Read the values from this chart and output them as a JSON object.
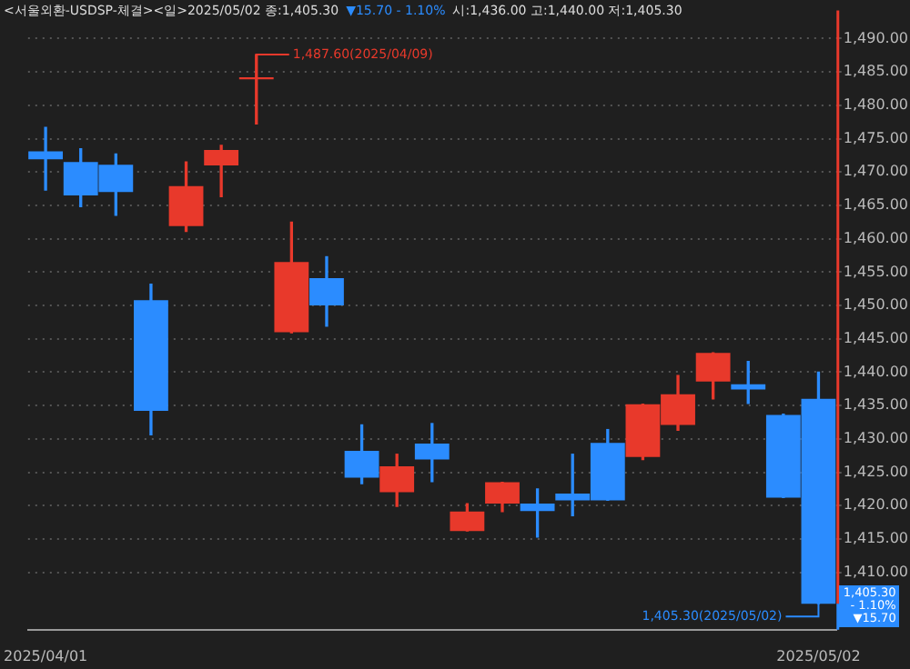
{
  "chart_data": {
    "type": "candlestick",
    "title": "<서울외환-USDSP-체결><일>2025/05/02 종:1,405.30",
    "categories": [
      "2025/04/01",
      null,
      null,
      null,
      null,
      null,
      null,
      null,
      null,
      null,
      null,
      null,
      null,
      null,
      null,
      null,
      null,
      null,
      null,
      null,
      null,
      null,
      "2025/05/02"
    ],
    "ohlc": [
      [
        1473.1,
        1476.7,
        1467.3,
        1471.9
      ],
      [
        1471.5,
        1473.5,
        1464.8,
        1466.5
      ],
      [
        1471.1,
        1472.7,
        1463.5,
        1467.0
      ],
      [
        1450.8,
        1453.2,
        1430.6,
        1434.2
      ],
      [
        1461.9,
        1471.5,
        1461.1,
        1467.9
      ],
      [
        1471.0,
        1474.0,
        1466.3,
        1473.3
      ],
      [
        1483.9,
        1487.6,
        1477.2,
        1484.2
      ],
      [
        1446.0,
        1462.5,
        1445.9,
        1456.5
      ],
      [
        1454.1,
        1457.3,
        1446.9,
        1450.0
      ],
      [
        1428.2,
        1432.1,
        1423.3,
        1424.2
      ],
      [
        1422.0,
        1427.7,
        1419.9,
        1425.9
      ],
      [
        1429.3,
        1432.3,
        1423.6,
        1426.9
      ],
      [
        1416.2,
        1420.3,
        1416.2,
        1419.1
      ],
      [
        1420.3,
        1423.5,
        1419.1,
        1423.5
      ],
      [
        1420.3,
        1422.5,
        1415.3,
        1419.2
      ],
      [
        1421.8,
        1427.7,
        1418.5,
        1420.8
      ],
      [
        1429.4,
        1431.4,
        1420.8,
        1420.8
      ],
      [
        1427.3,
        1435.2,
        1426.9,
        1435.2
      ],
      [
        1432.1,
        1439.5,
        1431.3,
        1436.7
      ],
      [
        1438.6,
        1442.9,
        1436.0,
        1442.9
      ],
      [
        1438.2,
        1441.6,
        1435.3,
        1437.4
      ],
      [
        1433.6,
        1433.7,
        1421.2,
        1421.2
      ],
      [
        1436.0,
        1440.0,
        1405.3,
        1405.3
      ]
    ],
    "colors": [
      "#2b8cff",
      "#2b8cff",
      "#2b8cff",
      "#2b8cff",
      "#e8392b",
      "#e8392b",
      "#e8392b",
      "#e8392b",
      "#2b8cff",
      "#2b8cff",
      "#e8392b",
      "#2b8cff",
      "#e8392b",
      "#e8392b",
      "#2b8cff",
      "#2b8cff",
      "#2b8cff",
      "#e8392b",
      "#e8392b",
      "#e8392b",
      "#2b8cff",
      "#2b8cff",
      "#2b8cff"
    ],
    "ylim": [
      1401.4,
      1494.2
    ],
    "yticks": [
      {
        "value": 1410,
        "label": "1,410.00"
      },
      {
        "value": 1415,
        "label": "1,415.00"
      },
      {
        "value": 1420,
        "label": "1,420.00"
      },
      {
        "value": 1425,
        "label": "1,425.00"
      },
      {
        "value": 1430,
        "label": "1,430.00"
      },
      {
        "value": 1435,
        "label": "1,435.00"
      },
      {
        "value": 1440,
        "label": "1,440.00"
      },
      {
        "value": 1445,
        "label": "1,445.00"
      },
      {
        "value": 1450,
        "label": "1,450.00"
      },
      {
        "value": 1455,
        "label": "1,455.00"
      },
      {
        "value": 1460,
        "label": "1,460.00"
      },
      {
        "value": 1465,
        "label": "1,465.00"
      },
      {
        "value": 1470,
        "label": "1,470.00"
      },
      {
        "value": 1475,
        "label": "1,475.00"
      },
      {
        "value": 1480,
        "label": "1,480.00"
      },
      {
        "value": 1485,
        "label": "1,485.00"
      },
      {
        "value": 1490,
        "label": "1,490.00"
      }
    ],
    "grid": "y",
    "annotations": [
      "▼15.70 - 1.10%",
      "시:1,436.00 고:1,440.00 저:1,405.30",
      "1,487.60(2025/04/09)",
      "1,405.30(2025/05/02)",
      "1,405.30\n- 1.10%\n▼15.70"
    ]
  }
}
